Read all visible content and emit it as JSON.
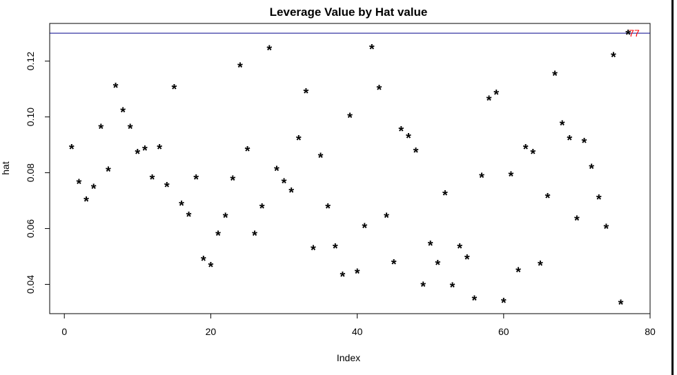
{
  "chart_data": {
    "type": "scatter",
    "title": "Leverage Value by Hat value",
    "xlabel": "Index",
    "ylabel": "hat",
    "xlim": [
      -2,
      80
    ],
    "ylim": [
      0.0295,
      0.1335
    ],
    "xticks": [
      0,
      20,
      40,
      60,
      80
    ],
    "yticks": [
      0.04,
      0.06,
      0.08,
      0.1,
      0.12
    ],
    "xtick_labels": [
      "0",
      "20",
      "40",
      "60",
      "80"
    ],
    "ytick_labels": [
      "0.04",
      "0.06",
      "0.08",
      "0.10",
      "0.12"
    ],
    "marker": "*",
    "reference_line": {
      "y": 0.13,
      "color": "#00008b"
    },
    "highlight": {
      "x": 77,
      "label": "77",
      "color": "#ff0000"
    },
    "points": [
      [
        1,
        0.089
      ],
      [
        2,
        0.0765
      ],
      [
        3,
        0.0703
      ],
      [
        4,
        0.0748
      ],
      [
        5,
        0.0963
      ],
      [
        6,
        0.081
      ],
      [
        7,
        0.111
      ],
      [
        8,
        0.1022
      ],
      [
        9,
        0.0963
      ],
      [
        10,
        0.0873
      ],
      [
        11,
        0.0885
      ],
      [
        12,
        0.0782
      ],
      [
        13,
        0.089
      ],
      [
        14,
        0.0755
      ],
      [
        15,
        0.1105
      ],
      [
        16,
        0.0688
      ],
      [
        17,
        0.0648
      ],
      [
        18,
        0.0782
      ],
      [
        19,
        0.049
      ],
      [
        20,
        0.0468
      ],
      [
        21,
        0.058
      ],
      [
        22,
        0.0645
      ],
      [
        23,
        0.0778
      ],
      [
        24,
        0.1183
      ],
      [
        25,
        0.0883
      ],
      [
        26,
        0.058
      ],
      [
        27,
        0.0678
      ],
      [
        28,
        0.1245
      ],
      [
        29,
        0.0813
      ],
      [
        30,
        0.0768
      ],
      [
        31,
        0.0735
      ],
      [
        32,
        0.0923
      ],
      [
        33,
        0.109
      ],
      [
        34,
        0.0528
      ],
      [
        35,
        0.086
      ],
      [
        36,
        0.0678
      ],
      [
        37,
        0.0535
      ],
      [
        38,
        0.0433
      ],
      [
        39,
        0.1003
      ],
      [
        40,
        0.0445
      ],
      [
        41,
        0.0608
      ],
      [
        42,
        0.1248
      ],
      [
        43,
        0.1103
      ],
      [
        44,
        0.0645
      ],
      [
        45,
        0.0478
      ],
      [
        46,
        0.0955
      ],
      [
        47,
        0.093
      ],
      [
        48,
        0.0878
      ],
      [
        49,
        0.0398
      ],
      [
        50,
        0.0545
      ],
      [
        51,
        0.0475
      ],
      [
        52,
        0.0725
      ],
      [
        53,
        0.0395
      ],
      [
        54,
        0.0535
      ],
      [
        55,
        0.0495
      ],
      [
        56,
        0.0348
      ],
      [
        57,
        0.0788
      ],
      [
        58,
        0.1065
      ],
      [
        59,
        0.1085
      ],
      [
        60,
        0.034
      ],
      [
        61,
        0.0793
      ],
      [
        62,
        0.045
      ],
      [
        63,
        0.089
      ],
      [
        64,
        0.0873
      ],
      [
        65,
        0.0473
      ],
      [
        66,
        0.0715
      ],
      [
        67,
        0.1153
      ],
      [
        68,
        0.0975
      ],
      [
        69,
        0.0923
      ],
      [
        70,
        0.0635
      ],
      [
        71,
        0.0913
      ],
      [
        72,
        0.082
      ],
      [
        73,
        0.071
      ],
      [
        74,
        0.0605
      ],
      [
        75,
        0.122
      ],
      [
        76,
        0.0333
      ],
      [
        77,
        0.13
      ]
    ]
  }
}
